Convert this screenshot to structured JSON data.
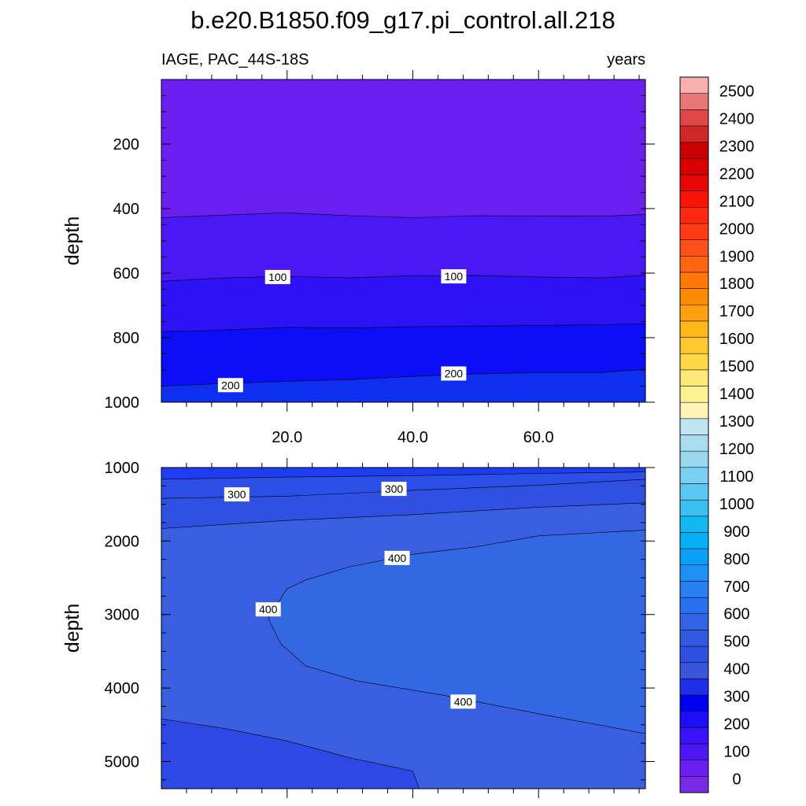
{
  "chart_data": {
    "type": "contour",
    "title": "b.e20.B1850.f09_g17.pi_control.all.218",
    "variable_label": "IAGE, PAC_44S-18S",
    "units": "years",
    "xlim": [
      0,
      77
    ],
    "x_ticks": [
      "20.0",
      "40.0",
      "60.0"
    ],
    "x_tick_values": [
      20,
      40,
      60
    ],
    "colorbar": {
      "levels": [
        0,
        100,
        200,
        300,
        400,
        500,
        600,
        700,
        800,
        900,
        1000,
        1100,
        1200,
        1300,
        1400,
        1500,
        1600,
        1700,
        1800,
        1900,
        2000,
        2100,
        2200,
        2300,
        2400,
        2500
      ],
      "labels": [
        "0",
        "100",
        "200",
        "300",
        "400",
        "500",
        "600",
        "700",
        "800",
        "900",
        "1000",
        "1100",
        "1200",
        "1300",
        "1400",
        "1500",
        "1600",
        "1700",
        "1800",
        "1900",
        "2000",
        "2100",
        "2200",
        "2300",
        "2400",
        "2500"
      ],
      "colors": [
        "#7a2ae6",
        "#6a1ff0",
        "#4e16f5",
        "#3a12f8",
        "#1e0ef8",
        "#0000f5",
        "#1f2ee8",
        "#3a55d8",
        "#2f4fe0",
        "#3458e0",
        "#3464e6",
        "#2a6ff0",
        "#2a80f2",
        "#1e90f5",
        "#0aa0f8",
        "#06b0f5",
        "#14b8f0",
        "#3ac0f0",
        "#5ac8f0",
        "#7ad0f0",
        "#9ad8f0",
        "#aadcf0",
        "#c0e4f4",
        "#fff4b8",
        "#fff090",
        "#ffe878",
        "#ffd848",
        "#ffc830",
        "#ffb818",
        "#ffa010",
        "#ff8c00",
        "#ff7808",
        "#ff6410",
        "#ff5018",
        "#ff3c14",
        "#ff2810",
        "#f81408",
        "#e80808",
        "#d80000",
        "#c80000",
        "#d02828",
        "#e04848",
        "#e87878",
        "#f8b0b0"
      ]
    },
    "panels": [
      {
        "name": "upper",
        "ylabel": "depth",
        "ylim": [
          1000,
          0
        ],
        "y_ticks": [
          "200",
          "400",
          "600",
          "800",
          "1000"
        ],
        "y_tick_values": [
          200,
          400,
          600,
          800,
          1000
        ],
        "contour_labels": [
          {
            "text": "100",
            "x": 18.5,
            "y": 612
          },
          {
            "text": "100",
            "x": 46.5,
            "y": 610
          },
          {
            "text": "200",
            "x": 11,
            "y": 947
          },
          {
            "text": "200",
            "x": 46.5,
            "y": 911
          }
        ],
        "contours": [
          {
            "depth_at_x": [
              [
                0,
                428
              ],
              [
                10,
                420
              ],
              [
                20,
                413
              ],
              [
                30,
                422
              ],
              [
                40,
                428
              ],
              [
                50,
                422
              ],
              [
                60,
                423
              ],
              [
                70,
                424
              ],
              [
                77,
                418
              ]
            ]
          },
          {
            "depth_at_x": [
              [
                0,
                625
              ],
              [
                10,
                615
              ],
              [
                20,
                610
              ],
              [
                30,
                615
              ],
              [
                40,
                608
              ],
              [
                50,
                607
              ],
              [
                60,
                612
              ],
              [
                70,
                615
              ],
              [
                77,
                606
              ]
            ]
          },
          {
            "depth_at_x": [
              [
                0,
                782
              ],
              [
                10,
                776
              ],
              [
                20,
                768
              ],
              [
                30,
                770
              ],
              [
                40,
                766
              ],
              [
                50,
                764
              ],
              [
                60,
                762
              ],
              [
                70,
                760
              ],
              [
                77,
                756
              ]
            ]
          },
          {
            "depth_at_x": [
              [
                0,
                950
              ],
              [
                10,
                942
              ],
              [
                20,
                935
              ],
              [
                30,
                930
              ],
              [
                40,
                920
              ],
              [
                50,
                912
              ],
              [
                60,
                908
              ],
              [
                70,
                908
              ],
              [
                77,
                898
              ]
            ]
          }
        ],
        "bands": [
          "#6a1ff0",
          "#4a18f5",
          "#2e12f6",
          "#0d0ef8",
          "#0e2ef0"
        ]
      },
      {
        "name": "lower",
        "ylabel": "depth",
        "ylim": [
          5370,
          1000
        ],
        "y_ticks": [
          "1000",
          "2000",
          "3000",
          "4000",
          "5000"
        ],
        "y_tick_values": [
          1000,
          2000,
          3000,
          4000,
          5000
        ],
        "contour_labels": [
          {
            "text": "300",
            "x": 12,
            "y": 1365
          },
          {
            "text": "300",
            "x": 37,
            "y": 1290
          },
          {
            "text": "400",
            "x": 37.5,
            "y": 2230
          },
          {
            "text": "400",
            "x": 17,
            "y": 2930
          },
          {
            "text": "400",
            "x": 48,
            "y": 4185
          }
        ]
      }
    ]
  }
}
